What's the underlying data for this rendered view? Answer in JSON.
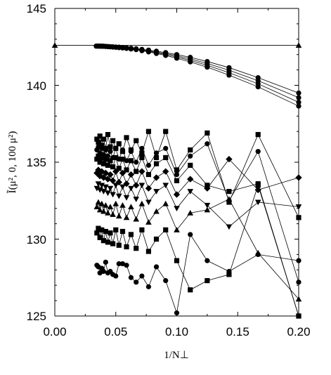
{
  "chart_data": {
    "type": "scatter",
    "title": "",
    "xlabel": "1/N⊥",
    "ylabel": "Ĩ(μ², 0, 100 μ²)",
    "xlim": [
      0.0,
      0.2
    ],
    "ylim": [
      125,
      145
    ],
    "x_ticks": [
      "0.00",
      "0.05",
      "0.10",
      "0.15",
      "0.20"
    ],
    "y_ticks": [
      "125",
      "130",
      "135",
      "140",
      "145"
    ],
    "grid": false,
    "legend": "none",
    "reference_line": {
      "y": 142.6,
      "marker": "triangle-up",
      "x": [
        0.0,
        0.2
      ]
    },
    "series": [
      {
        "marker": "circle",
        "x": [
          0.034,
          0.0357,
          0.037,
          0.0385,
          0.04,
          0.0417,
          0.0435,
          0.0455,
          0.0476,
          0.05,
          0.0526,
          0.0556,
          0.0588,
          0.0625,
          0.0667,
          0.0714,
          0.0769,
          0.0833,
          0.0909,
          0.1,
          0.1111,
          0.125,
          0.1429,
          0.1667,
          0.2
        ],
        "y": [
          142.55,
          142.55,
          142.55,
          142.54,
          142.54,
          142.53,
          142.52,
          142.51,
          142.5,
          142.49,
          142.48,
          142.46,
          142.44,
          142.41,
          142.38,
          142.34,
          142.29,
          142.22,
          142.13,
          142.0,
          141.82,
          141.55,
          141.15,
          140.5,
          139.5
        ]
      },
      {
        "marker": "circle",
        "x": [
          0.034,
          0.0357,
          0.037,
          0.0385,
          0.04,
          0.0417,
          0.0435,
          0.0455,
          0.0476,
          0.05,
          0.0526,
          0.0556,
          0.0588,
          0.0625,
          0.0667,
          0.0714,
          0.0769,
          0.0833,
          0.0909,
          0.1,
          0.1111,
          0.125,
          0.1429,
          0.1667,
          0.2
        ],
        "y": [
          142.55,
          142.55,
          142.55,
          142.54,
          142.54,
          142.53,
          142.52,
          142.51,
          142.5,
          142.49,
          142.48,
          142.45,
          142.43,
          142.4,
          142.36,
          142.31,
          142.25,
          142.17,
          142.07,
          141.92,
          141.72,
          141.42,
          140.98,
          140.3,
          139.2
        ]
      },
      {
        "marker": "circle",
        "x": [
          0.034,
          0.0357,
          0.037,
          0.0385,
          0.04,
          0.0417,
          0.0435,
          0.0455,
          0.0476,
          0.05,
          0.0526,
          0.0556,
          0.0588,
          0.0625,
          0.0667,
          0.0714,
          0.0769,
          0.0833,
          0.0909,
          0.1,
          0.1111,
          0.125,
          0.1429,
          0.1667,
          0.2
        ],
        "y": [
          142.55,
          142.55,
          142.55,
          142.54,
          142.54,
          142.53,
          142.52,
          142.51,
          142.49,
          142.48,
          142.46,
          142.44,
          142.41,
          142.38,
          142.34,
          142.28,
          142.21,
          142.12,
          142.0,
          141.84,
          141.62,
          141.3,
          140.82,
          140.1,
          138.9
        ]
      },
      {
        "marker": "circle",
        "x": [
          0.034,
          0.0357,
          0.037,
          0.0385,
          0.04,
          0.0417,
          0.0435,
          0.0455,
          0.0476,
          0.05,
          0.0526,
          0.0556,
          0.0588,
          0.0625,
          0.0667,
          0.0714,
          0.0769,
          0.0833,
          0.0909,
          0.1,
          0.1111,
          0.125,
          0.1429,
          0.1667,
          0.2
        ],
        "y": [
          142.55,
          142.55,
          142.55,
          142.54,
          142.54,
          142.53,
          142.52,
          142.5,
          142.49,
          142.47,
          142.45,
          142.43,
          142.4,
          142.36,
          142.32,
          142.25,
          142.17,
          142.07,
          141.94,
          141.76,
          141.52,
          141.18,
          140.66,
          139.9,
          138.65
        ]
      },
      {
        "marker": "square",
        "x": [
          0.0345,
          0.0357,
          0.037,
          0.0385,
          0.04,
          0.0417,
          0.0435,
          0.0455,
          0.0476,
          0.05,
          0.0526,
          0.0556,
          0.0588,
          0.0625,
          0.0667,
          0.0714,
          0.0769,
          0.0833,
          0.0909,
          0.1,
          0.1111,
          0.125,
          0.1429,
          0.1667,
          0.2
        ],
        "y": [
          136.5,
          136.3,
          136.7,
          136.1,
          136.5,
          135.9,
          136.8,
          136.0,
          136.4,
          135.9,
          136.2,
          135.7,
          136.6,
          135.8,
          136.4,
          135.6,
          137.0,
          135.3,
          137.0,
          134.5,
          135.8,
          136.9,
          132.4,
          136.8,
          131.4
        ]
      },
      {
        "marker": "circle",
        "x": [
          0.0345,
          0.0357,
          0.037,
          0.0385,
          0.04,
          0.0417,
          0.0435,
          0.0455,
          0.0476,
          0.05,
          0.0526,
          0.0556,
          0.0588,
          0.0625,
          0.0667,
          0.0714,
          0.0769,
          0.0833,
          0.0909,
          0.1,
          0.1111,
          0.125,
          0.1429,
          0.1667,
          0.2
        ],
        "y": [
          135.8,
          136.0,
          135.6,
          135.9,
          135.5,
          135.8,
          135.4,
          135.7,
          135.3,
          135.9,
          135.2,
          135.8,
          135.1,
          135.7,
          135.0,
          135.9,
          134.8,
          135.6,
          135.9,
          134.2,
          135.4,
          136.2,
          132.5,
          135.7,
          127.2
        ]
      },
      {
        "marker": "square",
        "x": [
          0.0345,
          0.0357,
          0.037,
          0.0385,
          0.04,
          0.0417,
          0.0435,
          0.0455,
          0.0476,
          0.05,
          0.0526,
          0.0556,
          0.0588,
          0.0625,
          0.0667,
          0.0714,
          0.0769,
          0.0833,
          0.0909,
          0.1,
          0.1111,
          0.125,
          0.1429,
          0.1667,
          0.2
        ],
        "y": [
          135.2,
          135.4,
          135.0,
          135.3,
          134.9,
          135.2,
          134.8,
          135.1,
          134.7,
          135.3,
          134.6,
          135.2,
          134.5,
          135.1,
          134.4,
          135.3,
          134.2,
          134.9,
          135.3,
          133.8,
          134.8,
          133.5,
          133.1,
          133.6,
          125.0
        ]
      },
      {
        "marker": "diamond",
        "x": [
          0.0345,
          0.0357,
          0.037,
          0.0385,
          0.04,
          0.0417,
          0.0435,
          0.0455,
          0.0476,
          0.05,
          0.0526,
          0.0556,
          0.0588,
          0.0625,
          0.0667,
          0.0714,
          0.0769,
          0.0833,
          0.0909,
          0.1,
          0.1111,
          0.125,
          0.1429,
          0.1667,
          0.2
        ],
        "y": [
          134.3,
          134.5,
          134.1,
          134.4,
          134.0,
          134.3,
          133.9,
          134.2,
          133.8,
          134.4,
          133.7,
          134.3,
          133.6,
          134.2,
          133.5,
          134.4,
          133.3,
          134.0,
          134.4,
          132.9,
          133.9,
          133.3,
          135.2,
          133.2,
          134.0
        ]
      },
      {
        "marker": "triangle-down",
        "x": [
          0.0345,
          0.0357,
          0.037,
          0.0385,
          0.04,
          0.0417,
          0.0435,
          0.0455,
          0.0476,
          0.05,
          0.0526,
          0.0556,
          0.0588,
          0.0625,
          0.0667,
          0.0714,
          0.0769,
          0.0833,
          0.0909,
          0.1,
          0.1111,
          0.125,
          0.1429,
          0.1667,
          0.2
        ],
        "y": [
          133.3,
          133.6,
          133.2,
          133.5,
          133.1,
          133.4,
          133.0,
          133.3,
          132.9,
          133.5,
          132.8,
          133.4,
          132.7,
          133.3,
          132.6,
          133.5,
          132.4,
          133.1,
          133.5,
          132.0,
          133.1,
          132.2,
          130.8,
          132.4,
          132.1
        ]
      },
      {
        "marker": "triangle-up",
        "x": [
          0.0345,
          0.0357,
          0.037,
          0.0385,
          0.04,
          0.0417,
          0.0435,
          0.0455,
          0.0476,
          0.05,
          0.0526,
          0.0556,
          0.0588,
          0.0625,
          0.0667,
          0.0714,
          0.0769,
          0.0833,
          0.0909,
          0.1,
          0.1111,
          0.125,
          0.1429,
          0.1667,
          0.2
        ],
        "y": [
          132.1,
          132.4,
          131.9,
          132.3,
          131.8,
          132.2,
          131.7,
          132.1,
          131.6,
          132.3,
          131.5,
          132.2,
          131.4,
          132.1,
          131.3,
          132.3,
          131.1,
          131.8,
          132.3,
          130.6,
          131.7,
          131.9,
          132.6,
          129.1,
          126.1
        ]
      },
      {
        "marker": "square",
        "x": [
          0.0345,
          0.0357,
          0.037,
          0.0385,
          0.04,
          0.0417,
          0.0435,
          0.0455,
          0.0476,
          0.05,
          0.0526,
          0.0556,
          0.0588,
          0.0625,
          0.0667,
          0.0714,
          0.0769,
          0.0833,
          0.0909,
          0.1,
          0.1111,
          0.125,
          0.1429,
          0.1667,
          0.2
        ],
        "y": [
          130.4,
          130.7,
          130.1,
          130.6,
          129.9,
          130.5,
          129.8,
          130.4,
          129.7,
          130.6,
          129.6,
          130.5,
          129.5,
          130.3,
          129.4,
          130.6,
          129.2,
          130.0,
          130.6,
          128.6,
          126.7,
          127.3,
          127.7,
          133.5,
          125.0
        ]
      },
      {
        "marker": "circle",
        "x": [
          0.0345,
          0.0357,
          0.037,
          0.0385,
          0.04,
          0.0417,
          0.0435,
          0.0455,
          0.0476,
          0.05,
          0.0526,
          0.0556,
          0.0588,
          0.0625,
          0.0667,
          0.0714,
          0.0769,
          0.0833,
          0.0909,
          0.1,
          0.1111,
          0.125,
          0.1429,
          0.1667,
          0.2
        ],
        "y": [
          128.3,
          128.2,
          127.8,
          128.1,
          127.9,
          128.5,
          127.8,
          127.9,
          127.7,
          127.6,
          128.4,
          128.4,
          128.3,
          127.5,
          127.2,
          127.6,
          126.9,
          128.2,
          127.3,
          125.2,
          130.3,
          128.6,
          127.9,
          129.0,
          128.6
        ]
      }
    ]
  }
}
